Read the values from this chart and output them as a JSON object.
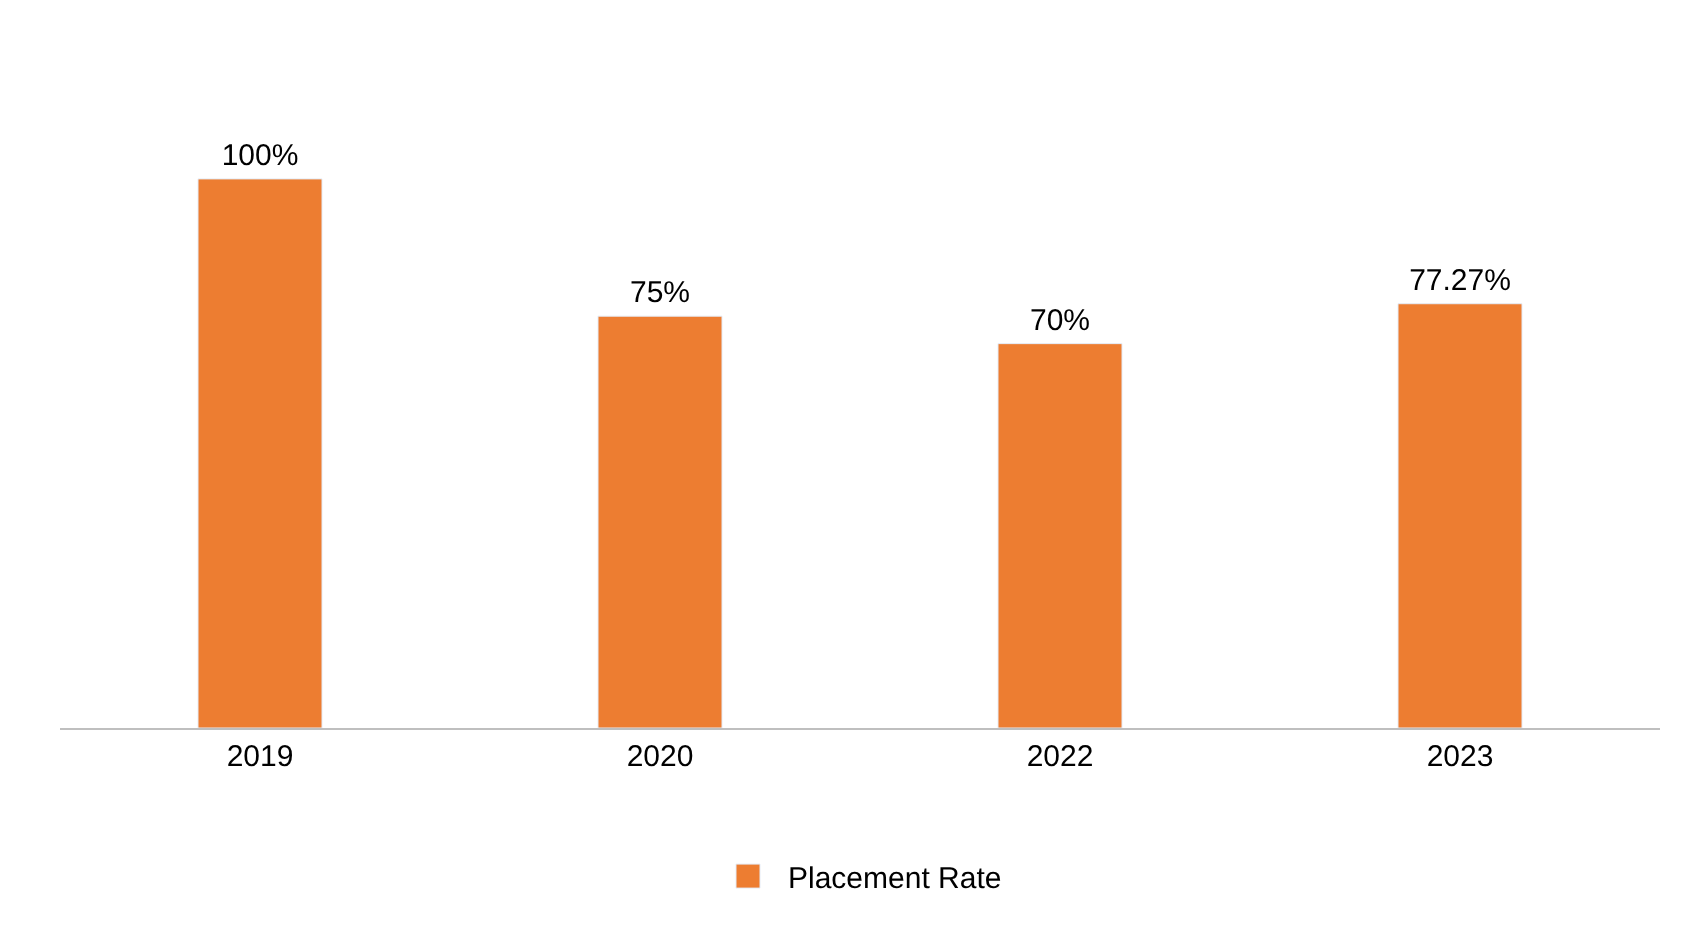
{
  "chart_data": {
    "type": "bar",
    "categories": [
      "2019",
      "2020",
      "2022",
      "2023"
    ],
    "series": [
      {
        "name": "Placement Rate",
        "color": "#ed7d31",
        "values": [
          100,
          75,
          70,
          77.27
        ],
        "value_labels": [
          "100%",
          "75%",
          "70%",
          "77.27%"
        ]
      }
    ],
    "legend": "bottom"
  }
}
